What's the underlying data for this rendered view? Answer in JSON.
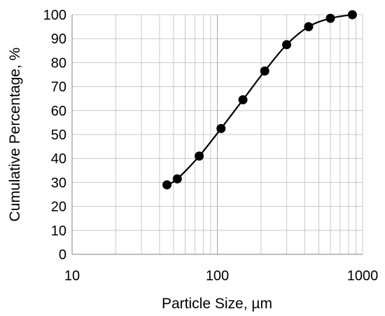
{
  "chart_data": {
    "type": "scatter",
    "title": "",
    "xlabel": "Particle Size, µm",
    "ylabel": "Cumulative Percentage, %",
    "x_scale": "log",
    "xlim": [
      10,
      1000
    ],
    "ylim": [
      0,
      100
    ],
    "x_ticks": [
      "10",
      "100",
      "1000"
    ],
    "y_ticks": [
      "0",
      "10",
      "20",
      "30",
      "40",
      "50",
      "60",
      "70",
      "80",
      "90",
      "100"
    ],
    "grid": true,
    "legend": "none",
    "series": [
      {
        "x": [
          45,
          53,
          75,
          106,
          150,
          212,
          300,
          425,
          600,
          850
        ],
        "y": [
          29,
          31.5,
          41,
          52.5,
          64.5,
          76.5,
          87.5,
          95,
          98.5,
          100
        ]
      }
    ],
    "colors": {
      "line": "#000000",
      "marker": "#000000",
      "grid": "#c8c8c8",
      "axis": "#808080"
    }
  }
}
